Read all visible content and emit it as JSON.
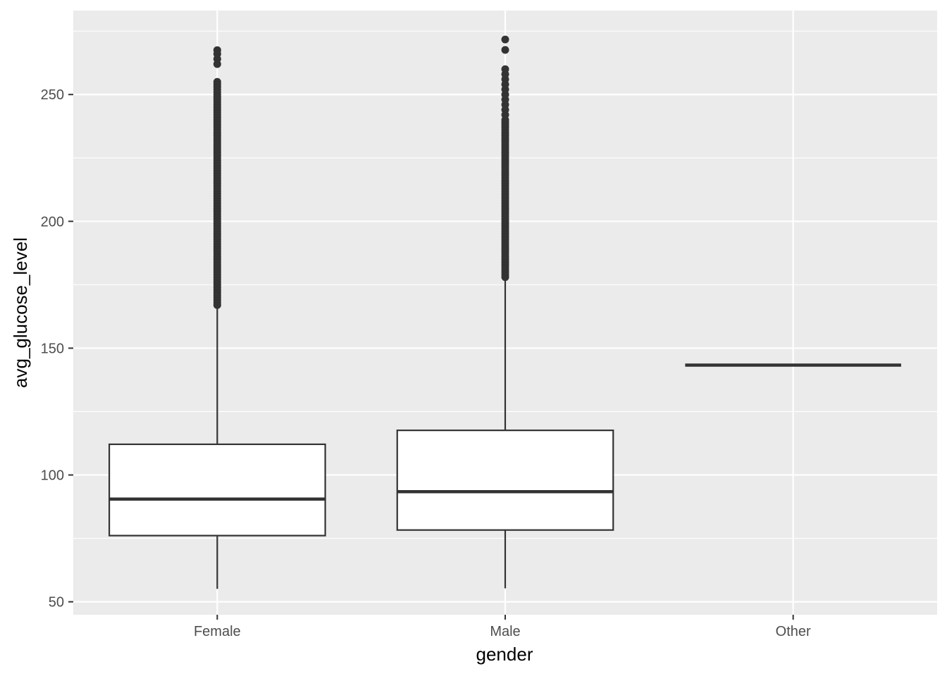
{
  "chart_data": {
    "type": "boxplot",
    "xlabel": "gender",
    "ylabel": "avg_glucose_level",
    "categories": [
      "Female",
      "Male",
      "Other"
    ],
    "ylim": [
      44.9,
      283.1
    ],
    "yticks": [
      50,
      100,
      150,
      200,
      250
    ],
    "y_minor_ticks": [
      75,
      125,
      175,
      225,
      275
    ],
    "grid": true,
    "boxes": [
      {
        "category": "Female",
        "whisker_low": 55.1,
        "q1": 76.1,
        "median": 90.5,
        "q3": 112.1,
        "whisker_high": 166.0,
        "outliers": [
          167,
          168,
          169,
          170,
          171,
          172,
          173,
          174,
          175,
          176,
          177,
          178,
          179,
          180,
          181,
          182,
          183,
          184,
          185,
          186,
          187,
          188,
          189,
          190,
          191,
          192,
          193,
          194,
          195,
          196,
          197,
          198,
          199,
          200,
          201,
          202,
          203,
          204,
          205,
          206,
          207,
          208,
          209,
          210,
          211,
          212,
          213,
          214,
          215,
          216,
          217,
          218,
          219,
          220,
          221,
          222,
          223,
          224,
          225,
          226,
          227,
          228,
          229,
          230,
          231,
          232,
          233,
          234,
          235,
          236,
          237,
          238,
          239,
          240,
          241,
          242,
          243,
          244,
          245,
          246,
          247,
          248,
          249,
          250,
          251,
          252,
          253,
          254,
          255,
          262,
          264,
          266,
          267.5
        ]
      },
      {
        "category": "Male",
        "whisker_low": 55.3,
        "q1": 78.3,
        "median": 93.4,
        "q3": 117.6,
        "whisker_high": 177.0,
        "outliers": [
          178,
          179,
          180,
          181,
          182,
          183,
          184,
          185,
          186,
          187,
          188,
          189,
          190,
          191,
          192,
          193,
          194,
          195,
          196,
          197,
          198,
          199,
          200,
          201,
          202,
          203,
          204,
          205,
          206,
          207,
          208,
          209,
          210,
          211,
          212,
          213,
          214,
          215,
          216,
          217,
          218,
          219,
          220,
          221,
          222,
          223,
          224,
          225,
          226,
          227,
          228,
          229,
          230,
          231,
          232,
          233,
          234,
          235,
          236,
          237,
          238,
          239,
          240,
          242,
          244,
          246,
          248,
          250,
          252,
          254,
          256,
          258,
          260,
          267.6,
          271.7
        ]
      },
      {
        "category": "Other",
        "whisker_low": 143.3,
        "q1": 143.3,
        "median": 143.3,
        "q3": 143.3,
        "whisker_high": 143.3,
        "outliers": []
      }
    ]
  }
}
